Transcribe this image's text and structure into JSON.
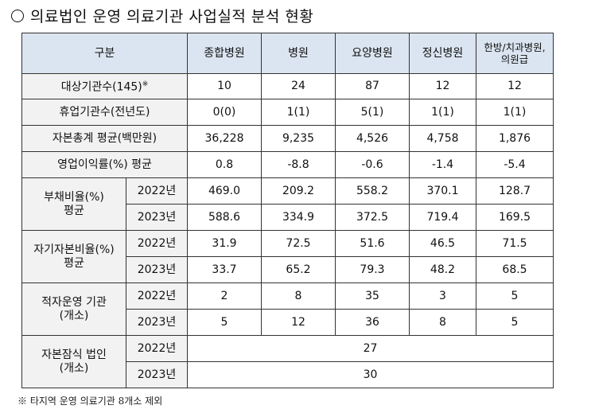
{
  "title": "의료법인 운영 의료기관 사업실적 분석 현황",
  "header": {
    "gubun": "구분",
    "cols": [
      "종합병원",
      "병원",
      "요양병원",
      "정신병원"
    ],
    "last_col_line1": "한방/치과병원,",
    "last_col_line2": "의원급"
  },
  "rows": {
    "target": {
      "label": "대상기관수(145)",
      "mark": "※",
      "values": [
        "10",
        "24",
        "87",
        "12",
        "12"
      ]
    },
    "closed": {
      "label": "휴업기관수(전년도)",
      "values": [
        "0(0)",
        "1(1)",
        "5(1)",
        "1(1)",
        "1(1)"
      ]
    },
    "capital": {
      "label": "자본총계 평균(백만원)",
      "values": [
        "36,228",
        "9,235",
        "4,526",
        "4,758",
        "1,876"
      ]
    },
    "profit": {
      "label": "영업이익률(%) 평균",
      "values": [
        "0.8",
        "-8.8",
        "-0.6",
        "-1.4",
        "-5.4"
      ]
    },
    "debt": {
      "label_line1": "부채비율(%)",
      "label_line2": "평균",
      "y1": "2022년",
      "v1": [
        "469.0",
        "209.2",
        "558.2",
        "370.1",
        "128.7"
      ],
      "y2": "2023년",
      "v2": [
        "588.6",
        "334.9",
        "372.5",
        "719.4",
        "169.5"
      ]
    },
    "equity": {
      "label_line1": "자기자본비율(%)",
      "label_line2": "평균",
      "y1": "2022년",
      "v1": [
        "31.9",
        "72.5",
        "51.6",
        "46.5",
        "71.5"
      ],
      "y2": "2023년",
      "v2": [
        "33.7",
        "65.2",
        "79.3",
        "48.2",
        "68.5"
      ]
    },
    "deficit": {
      "label_line1": "적자운영 기관",
      "label_line2": "(개소)",
      "y1": "2022년",
      "v1": [
        "2",
        "8",
        "35",
        "3",
        "5"
      ],
      "y2": "2023년",
      "v2": [
        "5",
        "12",
        "36",
        "8",
        "5"
      ]
    },
    "impaired": {
      "label_line1": "자본잠식 법인",
      "label_line2": "(개소)",
      "y1": "2022년",
      "v1": "27",
      "y2": "2023년",
      "v2": "30"
    }
  },
  "footnote": "※ 타지역 운영 의료기관 8개소 제외"
}
